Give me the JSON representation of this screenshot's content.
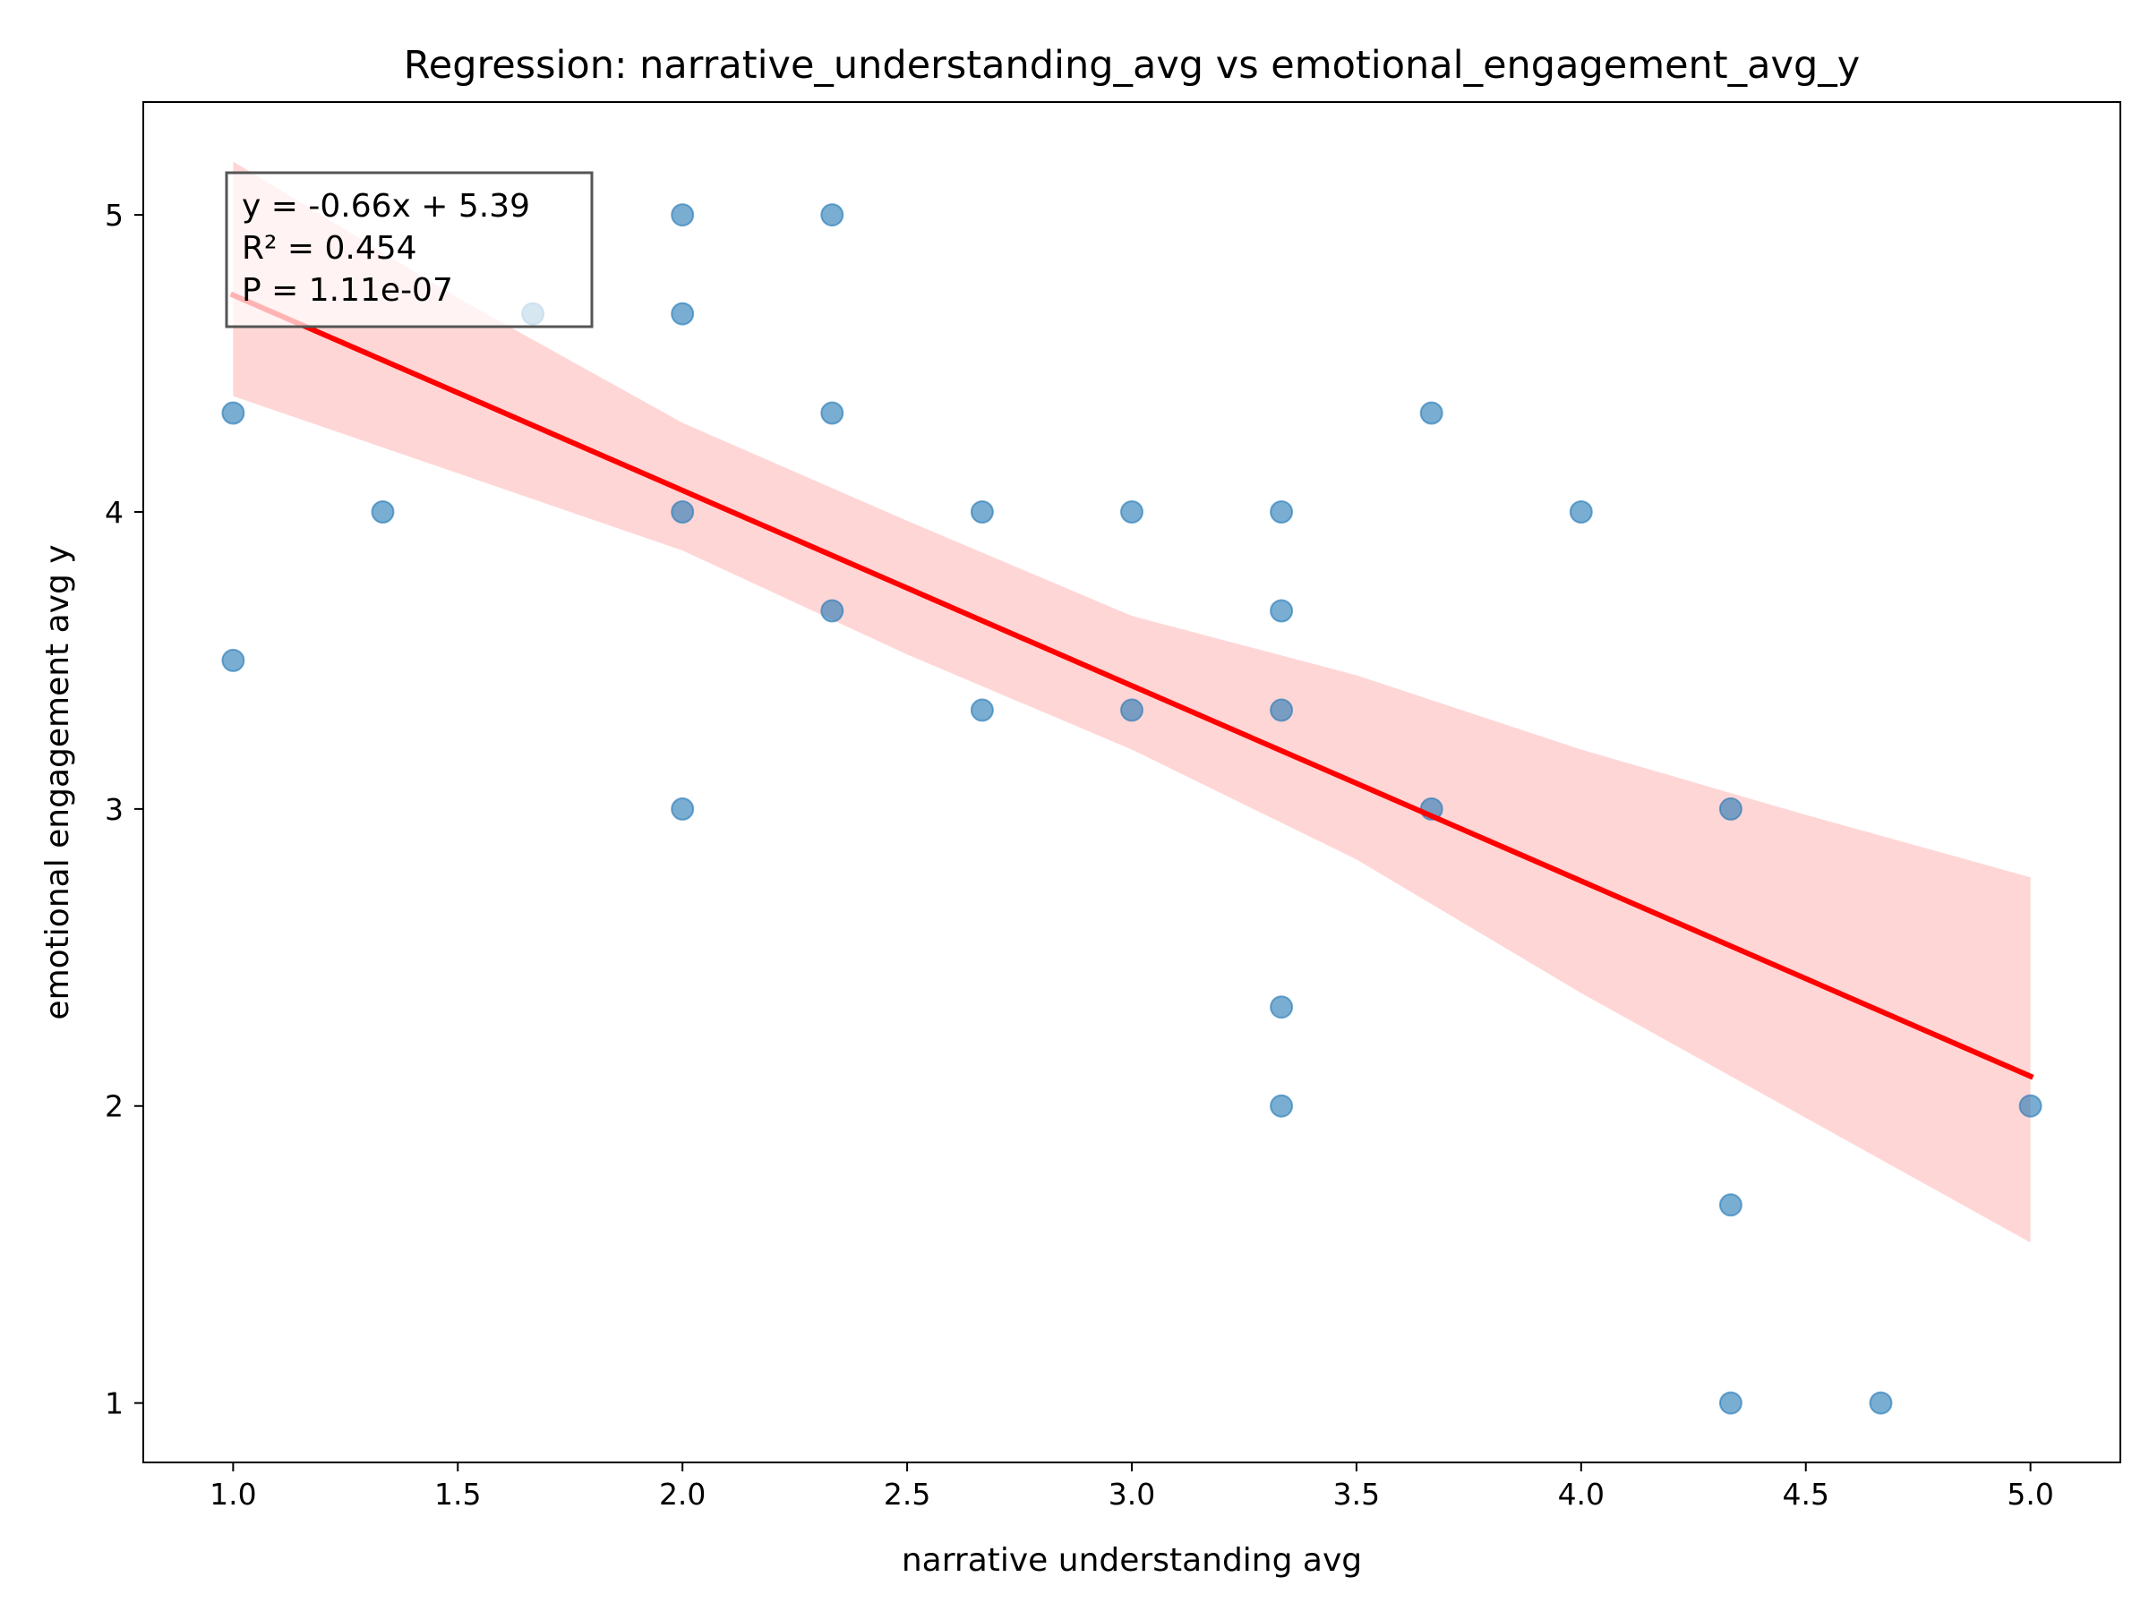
{
  "chart_data": {
    "type": "scatter",
    "title": "Regression: narrative_understanding_avg vs emotional_engagement_avg_y",
    "xlabel": "narrative understanding avg",
    "ylabel": "emotional engagement avg y",
    "xlim": [
      0.8,
      5.2
    ],
    "ylim": [
      0.8,
      5.38
    ],
    "x_ticks": [
      "1.0",
      "1.5",
      "2.0",
      "2.5",
      "3.0",
      "3.5",
      "4.0",
      "4.5",
      "5.0"
    ],
    "y_ticks": [
      "1",
      "2",
      "3",
      "4",
      "5"
    ],
    "grid": false,
    "point_color": "#1f77b4",
    "line_color": "#ff0000",
    "band_color": "#ffcccc",
    "points": [
      {
        "x": 1.0,
        "y": 4.333
      },
      {
        "x": 1.0,
        "y": 3.5
      },
      {
        "x": 1.333,
        "y": 4.0
      },
      {
        "x": 1.667,
        "y": 4.667
      },
      {
        "x": 2.0,
        "y": 5.0
      },
      {
        "x": 2.0,
        "y": 4.667
      },
      {
        "x": 2.0,
        "y": 4.0
      },
      {
        "x": 2.0,
        "y": 3.0
      },
      {
        "x": 2.333,
        "y": 5.0
      },
      {
        "x": 2.333,
        "y": 4.333
      },
      {
        "x": 2.333,
        "y": 3.667
      },
      {
        "x": 2.667,
        "y": 4.0
      },
      {
        "x": 2.667,
        "y": 3.333
      },
      {
        "x": 3.0,
        "y": 4.0
      },
      {
        "x": 3.0,
        "y": 3.333
      },
      {
        "x": 3.333,
        "y": 4.0
      },
      {
        "x": 3.333,
        "y": 3.667
      },
      {
        "x": 3.333,
        "y": 3.333
      },
      {
        "x": 3.333,
        "y": 2.333
      },
      {
        "x": 3.333,
        "y": 2.0
      },
      {
        "x": 3.667,
        "y": 4.333
      },
      {
        "x": 3.667,
        "y": 3.0
      },
      {
        "x": 4.0,
        "y": 4.0
      },
      {
        "x": 4.333,
        "y": 3.0
      },
      {
        "x": 4.333,
        "y": 1.667
      },
      {
        "x": 4.333,
        "y": 1.0
      },
      {
        "x": 4.667,
        "y": 1.0
      },
      {
        "x": 5.0,
        "y": 2.0
      }
    ],
    "regression": {
      "x_range": [
        1.0,
        5.0
      ],
      "y_range": [
        4.73,
        2.1
      ],
      "band_x": [
        1.0,
        1.5,
        2.0,
        2.5,
        3.0,
        3.5,
        4.0,
        4.5,
        5.0
      ],
      "band_upper": [
        5.18,
        4.72,
        4.3,
        3.97,
        3.65,
        3.45,
        3.2,
        2.98,
        2.77
      ],
      "band_lower": [
        4.39,
        4.13,
        3.87,
        3.52,
        3.2,
        2.83,
        2.38,
        1.96,
        1.54
      ]
    },
    "annotation_lines": [
      "y = -0.66x + 5.39",
      "R² = 0.454",
      "P = 1.11e-07"
    ]
  }
}
